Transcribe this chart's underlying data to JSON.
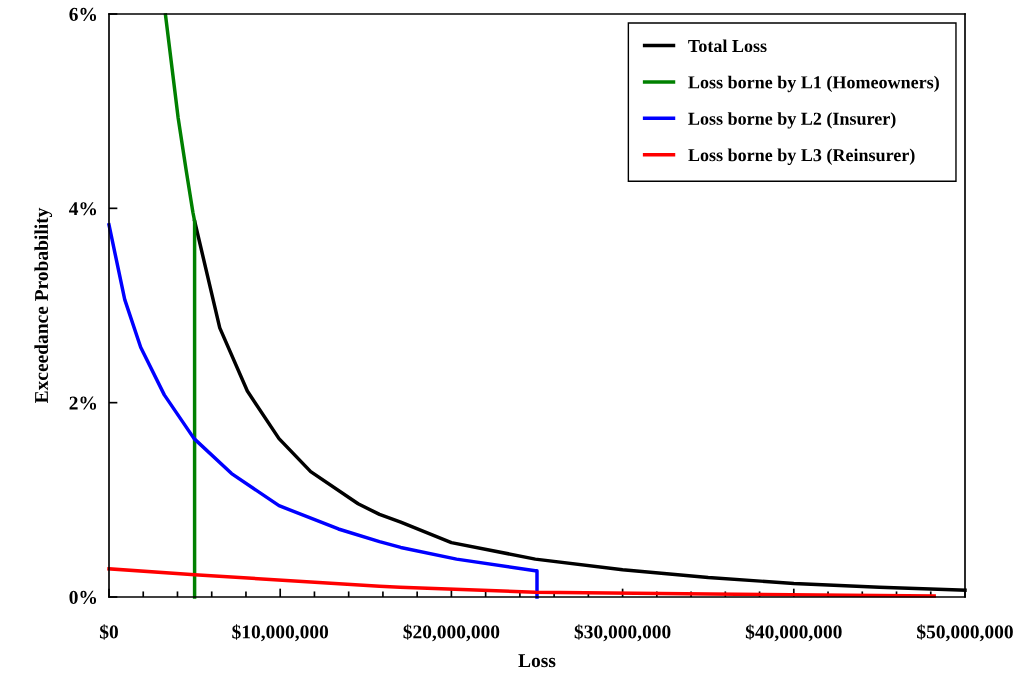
{
  "chart_data": {
    "type": "line",
    "xlabel": "Loss",
    "ylabel": "Exceedance Probability",
    "series": [
      {
        "name": "Total Loss",
        "color": "#000000",
        "x": [
          5000000,
          6470000,
          8080000,
          9930000,
          11780000,
          14550000,
          15800000,
          17040000,
          20000000,
          24900000,
          30000000,
          35000000,
          40000000,
          45000000,
          50000000
        ],
        "values": [
          3.87,
          2.77,
          2.12,
          1.63,
          1.29,
          0.96,
          0.85,
          0.77,
          0.56,
          0.39,
          0.28,
          0.2,
          0.14,
          0.1,
          0.07
        ]
      },
      {
        "name": "Loss borne by L1 (Homeowners)",
        "color": "#008000",
        "x": [
          3300000,
          4040000,
          4500000,
          4900000,
          5000000,
          5000000
        ],
        "values": [
          5.99,
          4.93,
          4.4,
          3.96,
          3.87,
          0
        ]
      },
      {
        "name": "Loss borne by L2 (Insurer)",
        "color": "#0000ff",
        "x": [
          0,
          920000,
          1850000,
          3230000,
          4970000,
          7160000,
          9930000,
          13400000,
          15800000,
          17040000,
          20300000,
          24900000,
          25000000,
          25000000
        ],
        "values": [
          3.83,
          3.06,
          2.57,
          2.08,
          1.63,
          1.27,
          0.94,
          0.7,
          0.57,
          0.51,
          0.39,
          0.27,
          0.27,
          0
        ]
      },
      {
        "name": "Loss borne by L3 (Reinsurer)",
        "color": "#ff0000",
        "x": [
          0,
          5000000,
          15800000,
          17000000,
          24900000,
          35100000,
          48200000
        ],
        "values": [
          0.29,
          0.23,
          0.11,
          0.1,
          0.05,
          0.03,
          0.01
        ]
      }
    ],
    "xlim": [
      0,
      50000000
    ],
    "xticks": [
      {
        "value": 0,
        "label": "$0"
      },
      {
        "value": 10000000,
        "label": "$10,000,000"
      },
      {
        "value": 20000000,
        "label": "$20,000,000"
      },
      {
        "value": 30000000,
        "label": "$30,000,000"
      },
      {
        "value": 40000000,
        "label": "$40,000,000"
      },
      {
        "value": 50000000,
        "label": "$50,000,000"
      }
    ],
    "ylim": [
      0,
      6
    ],
    "yticks": [
      {
        "value": 0,
        "label": "0%"
      },
      {
        "value": 2,
        "label": "2%"
      },
      {
        "value": 4,
        "label": "4%"
      },
      {
        "value": 6,
        "label": "6%"
      }
    ],
    "grid": false,
    "legend": "top right",
    "marker": "none",
    "line_style": "solid"
  }
}
